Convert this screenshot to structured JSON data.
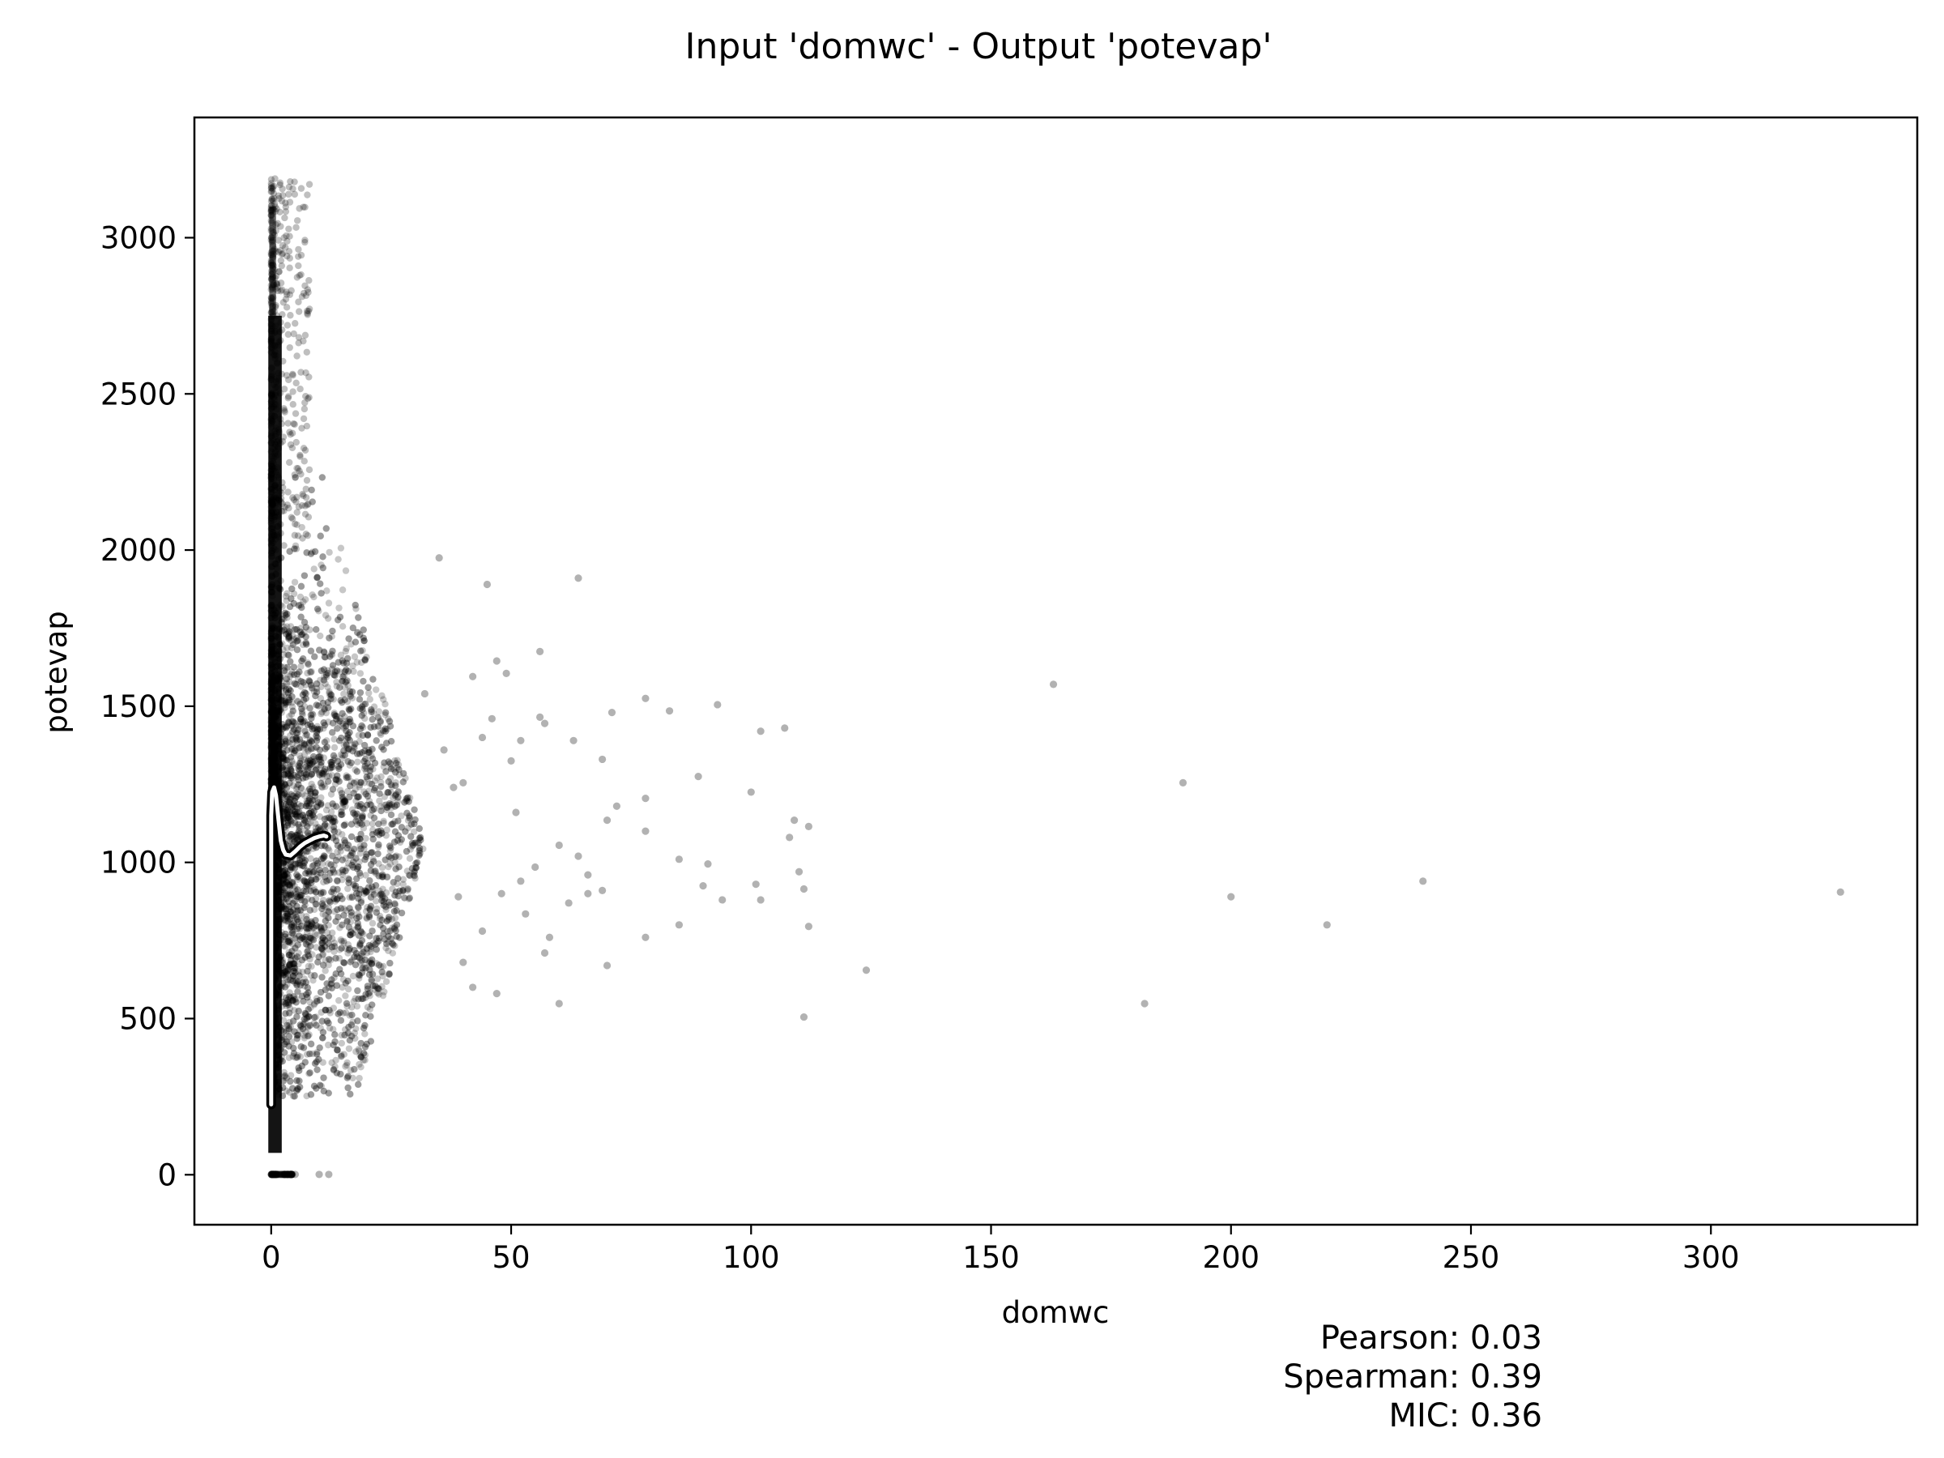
{
  "chart_data": {
    "type": "scatter",
    "title": "Input 'domwc' - Output 'potevap'",
    "xlabel": "domwc",
    "ylabel": "potevap",
    "xlim": [
      -16,
      343
    ],
    "ylim": [
      -160,
      3385
    ],
    "xticks": [
      0,
      50,
      100,
      150,
      200,
      250,
      300
    ],
    "yticks": [
      0,
      500,
      1000,
      1500,
      2000,
      2500,
      3000
    ],
    "grid": false,
    "legend": "none",
    "point_color": "#000000",
    "trend_color": "#ffffff",
    "sparse_points": [
      [
        163,
        1570
      ],
      [
        190,
        1255
      ],
      [
        327,
        905
      ],
      [
        240,
        940
      ],
      [
        200,
        890
      ],
      [
        220,
        800
      ],
      [
        182,
        548
      ],
      [
        124,
        655
      ],
      [
        111,
        505
      ],
      [
        112,
        1115
      ],
      [
        109,
        1135
      ],
      [
        108,
        1080
      ],
      [
        110,
        970
      ],
      [
        111,
        915
      ],
      [
        112,
        795
      ],
      [
        107,
        1430
      ],
      [
        102,
        1420
      ],
      [
        101,
        930
      ],
      [
        102,
        880
      ],
      [
        100,
        1225
      ],
      [
        93,
        1505
      ],
      [
        89,
        1275
      ],
      [
        91,
        995
      ],
      [
        94,
        880
      ],
      [
        90,
        925
      ],
      [
        85,
        800
      ],
      [
        85,
        1010
      ],
      [
        83,
        1485
      ],
      [
        78,
        1525
      ],
      [
        78,
        1205
      ],
      [
        78,
        1100
      ],
      [
        78,
        760
      ],
      [
        71,
        1480
      ],
      [
        72,
        1180
      ],
      [
        70,
        1135
      ],
      [
        70,
        670
      ],
      [
        69,
        1330
      ],
      [
        69,
        910
      ],
      [
        66,
        960
      ],
      [
        64,
        1910
      ],
      [
        63,
        1390
      ],
      [
        64,
        1020
      ],
      [
        60,
        1055
      ],
      [
        60,
        548
      ],
      [
        57,
        1445
      ],
      [
        56,
        1675
      ],
      [
        56,
        1465
      ],
      [
        55,
        985
      ],
      [
        57,
        710
      ],
      [
        52,
        1390
      ],
      [
        50,
        1325
      ],
      [
        51,
        1160
      ],
      [
        47,
        1645
      ],
      [
        49,
        1605
      ],
      [
        45,
        1890
      ],
      [
        44,
        1400
      ],
      [
        46,
        1460
      ],
      [
        42,
        1595
      ],
      [
        40,
        1255
      ],
      [
        38,
        1240
      ],
      [
        35,
        1975
      ],
      [
        32,
        1540
      ],
      [
        36,
        1360
      ],
      [
        53,
        835
      ],
      [
        48,
        900
      ],
      [
        47,
        580
      ],
      [
        42,
        600
      ],
      [
        44,
        780
      ],
      [
        40,
        680
      ],
      [
        39,
        890
      ],
      [
        62,
        870
      ],
      [
        66,
        900
      ],
      [
        58,
        760
      ],
      [
        52,
        940
      ],
      [
        12,
        1
      ],
      [
        10,
        1
      ],
      [
        5,
        1
      ],
      [
        4,
        1
      ],
      [
        3,
        1
      ],
      [
        2,
        1
      ]
    ],
    "trend_line": [
      [
        0,
        225
      ],
      [
        0,
        400
      ],
      [
        0,
        700
      ],
      [
        0,
        1000
      ],
      [
        0,
        1150
      ],
      [
        0.2,
        1225
      ],
      [
        0.6,
        1240
      ],
      [
        1,
        1215
      ],
      [
        1.5,
        1140
      ],
      [
        2,
        1070
      ],
      [
        2.5,
        1040
      ],
      [
        3,
        1025
      ],
      [
        4,
        1022
      ],
      [
        5,
        1035
      ],
      [
        6,
        1050
      ],
      [
        7,
        1062
      ],
      [
        8,
        1070
      ],
      [
        9,
        1078
      ],
      [
        10,
        1083
      ],
      [
        11,
        1086
      ],
      [
        11.5,
        1083
      ]
    ],
    "stats": {
      "pearson": "Pearson: 0.03",
      "spearman": "Spearman: 0.39",
      "mic": "MIC: 0.36"
    }
  }
}
